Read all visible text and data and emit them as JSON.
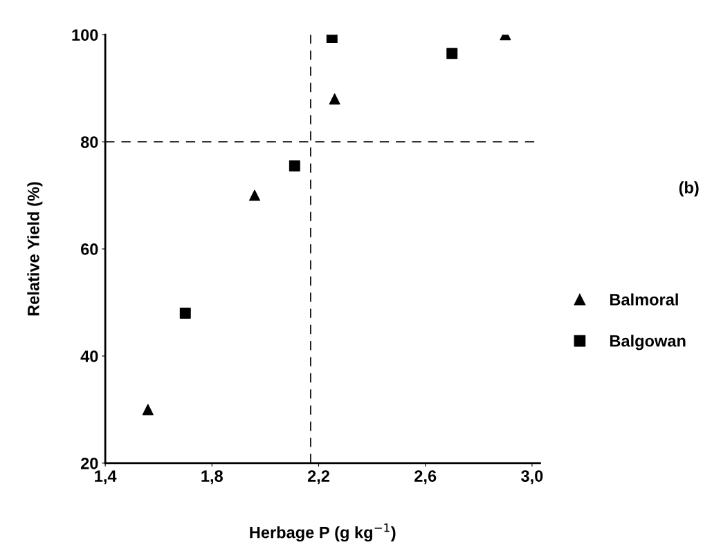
{
  "chart_data": {
    "type": "scatter",
    "xlabel": "Herbage P (g kg$^{−1}$)",
    "ylabel": "Relative Yield (%)",
    "xlim": [
      1.4,
      3.03
    ],
    "xticks": [
      {
        "value": 1.4,
        "label": "1,4"
      },
      {
        "value": 1.8,
        "label": "1,8"
      },
      {
        "value": 2.2,
        "label": "2,2"
      },
      {
        "value": 2.6,
        "label": "2,6"
      },
      {
        "value": 3.0,
        "label": "3,0"
      }
    ],
    "ylim": [
      20,
      100
    ],
    "yticks": [
      20,
      40,
      60,
      80,
      100
    ],
    "grid": false,
    "legend": "right",
    "series": [
      {
        "name": "Balmoral",
        "color": "#000000",
        "marker": "triangle",
        "x": [
          1.56,
          1.96,
          2.26,
          2.9
        ],
        "values": [
          30,
          70,
          88,
          100
        ]
      },
      {
        "name": "Balgowan",
        "color": "#000000",
        "marker": "square",
        "x": [
          1.7,
          2.11,
          2.25,
          2.7
        ],
        "values": [
          48,
          75.5,
          99.5,
          96.5
        ]
      }
    ],
    "ref_lines": [
      {
        "axis": "x",
        "value": 2.17,
        "color": "#000000",
        "line_style": "dashed"
      },
      {
        "axis": "y",
        "value": 80,
        "color": "#000000",
        "line_style": "dashed"
      }
    ],
    "annotations": [
      "(b)"
    ]
  }
}
